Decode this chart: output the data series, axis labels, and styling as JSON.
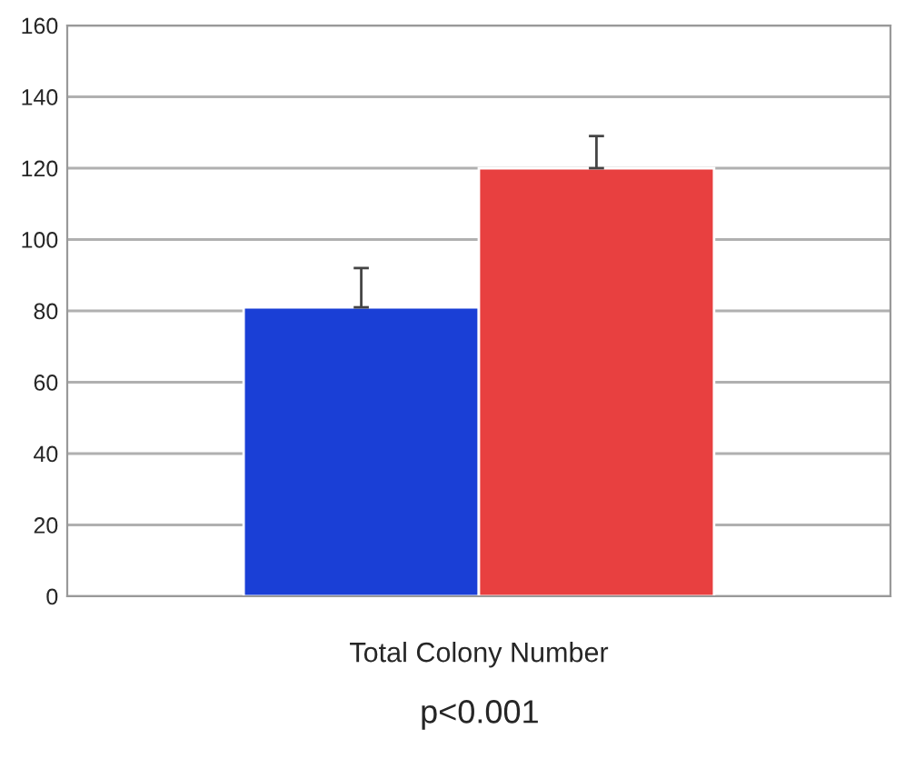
{
  "chart_data": {
    "type": "bar",
    "categories": [
      "Total Colony Number"
    ],
    "series": [
      {
        "color": "#1a3fd6",
        "values": [
          81
        ],
        "errors": [
          [
            81,
            92
          ]
        ]
      },
      {
        "color": "#e84040",
        "values": [
          120
        ],
        "errors": [
          [
            120,
            129
          ]
        ]
      }
    ],
    "ylim": [
      0,
      160
    ],
    "yticks": [
      0,
      20,
      40,
      60,
      80,
      100,
      120,
      140,
      160
    ],
    "grid": "y",
    "annotations": [
      "p<0.001"
    ]
  }
}
